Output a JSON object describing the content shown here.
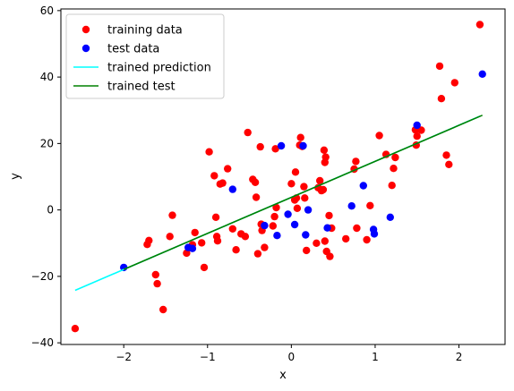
{
  "chart_data": {
    "type": "scatter",
    "title": "",
    "xlabel": "x",
    "ylabel": "y",
    "xlim": [
      -2.75,
      2.55
    ],
    "ylim": [
      -40.5,
      60.5
    ],
    "xticks": [
      -2,
      -1,
      0,
      1,
      2
    ],
    "yticks": [
      -40,
      -20,
      0,
      20,
      40,
      60
    ],
    "grid": false,
    "legend_position": "top-left",
    "series": [
      {
        "name": "training data",
        "kind": "scatter",
        "color": "#ff0000",
        "points": [
          [
            -2.58,
            -35.7
          ],
          [
            -1.72,
            -10.4
          ],
          [
            -1.7,
            -9.2
          ],
          [
            -1.62,
            -19.5
          ],
          [
            -1.6,
            -22.2
          ],
          [
            -1.53,
            -30.0
          ],
          [
            -1.45,
            -8.0
          ],
          [
            -1.42,
            -1.6
          ],
          [
            -1.25,
            -13.0
          ],
          [
            -1.18,
            -10.5
          ],
          [
            -1.15,
            -6.8
          ],
          [
            -1.07,
            -9.9
          ],
          [
            -1.04,
            -17.3
          ],
          [
            -0.98,
            17.5
          ],
          [
            -0.92,
            10.3
          ],
          [
            -0.9,
            -2.2
          ],
          [
            -0.89,
            -8.0
          ],
          [
            -0.88,
            -9.3
          ],
          [
            -0.85,
            7.8
          ],
          [
            -0.82,
            8.1
          ],
          [
            -0.76,
            12.4
          ],
          [
            -0.7,
            -5.7
          ],
          [
            -0.66,
            -12.0
          ],
          [
            -0.6,
            -7.2
          ],
          [
            -0.55,
            -8.0
          ],
          [
            -0.52,
            23.3
          ],
          [
            -0.46,
            9.2
          ],
          [
            -0.43,
            8.3
          ],
          [
            -0.42,
            3.8
          ],
          [
            -0.4,
            -13.2
          ],
          [
            -0.37,
            19.0
          ],
          [
            -0.36,
            -4.3
          ],
          [
            -0.35,
            -6.2
          ],
          [
            -0.32,
            -11.3
          ],
          [
            -0.22,
            -4.8
          ],
          [
            -0.2,
            -2.0
          ],
          [
            -0.19,
            18.4
          ],
          [
            -0.18,
            0.7
          ],
          [
            0.0,
            7.9
          ],
          [
            0.04,
            3.0
          ],
          [
            0.05,
            11.4
          ],
          [
            0.06,
            3.6
          ],
          [
            0.07,
            0.5
          ],
          [
            0.1,
            19.5
          ],
          [
            0.11,
            21.8
          ],
          [
            0.13,
            19.1
          ],
          [
            0.15,
            7.0
          ],
          [
            0.16,
            3.6
          ],
          [
            0.18,
            -12.2
          ],
          [
            0.3,
            -10.0
          ],
          [
            0.32,
            6.7
          ],
          [
            0.34,
            8.8
          ],
          [
            0.36,
            5.8
          ],
          [
            0.38,
            6.1
          ],
          [
            0.39,
            18.0
          ],
          [
            0.4,
            14.3
          ],
          [
            0.41,
            15.9
          ],
          [
            0.4,
            -9.4
          ],
          [
            0.42,
            -12.5
          ],
          [
            0.45,
            -1.7
          ],
          [
            0.46,
            -14.0
          ],
          [
            0.48,
            -5.5
          ],
          [
            0.65,
            -8.7
          ],
          [
            0.75,
            12.3
          ],
          [
            0.77,
            14.6
          ],
          [
            0.78,
            -5.5
          ],
          [
            0.9,
            -9.0
          ],
          [
            0.94,
            1.3
          ],
          [
            1.05,
            22.4
          ],
          [
            1.13,
            16.7
          ],
          [
            1.2,
            7.4
          ],
          [
            1.22,
            12.5
          ],
          [
            1.24,
            15.8
          ],
          [
            1.48,
            24.1
          ],
          [
            1.49,
            19.5
          ],
          [
            1.5,
            22.2
          ],
          [
            1.55,
            24.0
          ],
          [
            1.77,
            43.3
          ],
          [
            1.79,
            33.5
          ],
          [
            1.85,
            16.5
          ],
          [
            1.88,
            13.7
          ],
          [
            1.95,
            38.3
          ],
          [
            2.25,
            55.8
          ]
        ]
      },
      {
        "name": "test data",
        "kind": "scatter",
        "color": "#0000ff",
        "points": [
          [
            -2.0,
            -17.3
          ],
          [
            -1.23,
            -11.3
          ],
          [
            -1.18,
            -11.6
          ],
          [
            -0.7,
            6.2
          ],
          [
            -0.32,
            -4.7
          ],
          [
            -0.17,
            -7.7
          ],
          [
            -0.12,
            19.3
          ],
          [
            -0.04,
            -1.3
          ],
          [
            0.04,
            -4.4
          ],
          [
            0.14,
            19.3
          ],
          [
            0.17,
            -7.5
          ],
          [
            0.2,
            0.0
          ],
          [
            0.43,
            -5.4
          ],
          [
            0.72,
            1.2
          ],
          [
            0.86,
            7.3
          ],
          [
            0.98,
            -5.9
          ],
          [
            0.99,
            -7.2
          ],
          [
            1.18,
            -2.2
          ],
          [
            1.5,
            25.5
          ],
          [
            2.28,
            40.9
          ]
        ]
      },
      {
        "name": "trained prediction",
        "kind": "line",
        "color": "#00ffff",
        "points": [
          [
            -2.58,
            -24.2
          ],
          [
            2.25,
            28.2
          ]
        ]
      },
      {
        "name": "trained test",
        "kind": "line",
        "color": "#008000",
        "points": [
          [
            -2.0,
            -17.9
          ],
          [
            2.28,
            28.5
          ]
        ]
      }
    ]
  }
}
